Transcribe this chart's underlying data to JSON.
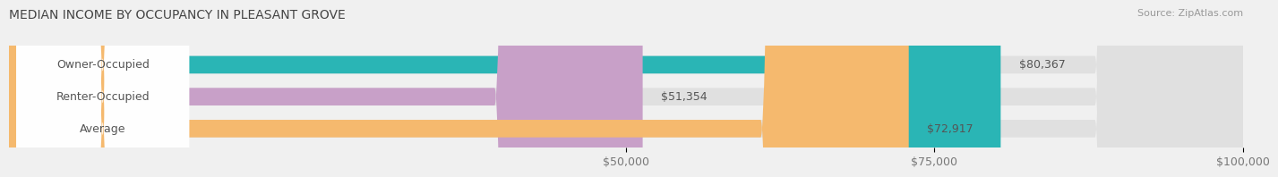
{
  "title": "MEDIAN INCOME BY OCCUPANCY IN PLEASANT GROVE",
  "source": "Source: ZipAtlas.com",
  "categories": [
    "Owner-Occupied",
    "Renter-Occupied",
    "Average"
  ],
  "values": [
    80367,
    51354,
    72917
  ],
  "bar_colors": [
    "#2ab5b5",
    "#c8a0c8",
    "#f5b96e"
  ],
  "background_color": "#f0f0f0",
  "bar_bg_color": "#e0e0e0",
  "xlim": [
    0,
    100000
  ],
  "xticks": [
    50000,
    75000,
    100000
  ],
  "xtick_labels": [
    "$50,000",
    "$75,000",
    "$100,000"
  ],
  "label_fontsize": 9,
  "value_labels": [
    "$80,367",
    "$51,354",
    "$72,917"
  ],
  "title_fontsize": 10,
  "source_fontsize": 8
}
